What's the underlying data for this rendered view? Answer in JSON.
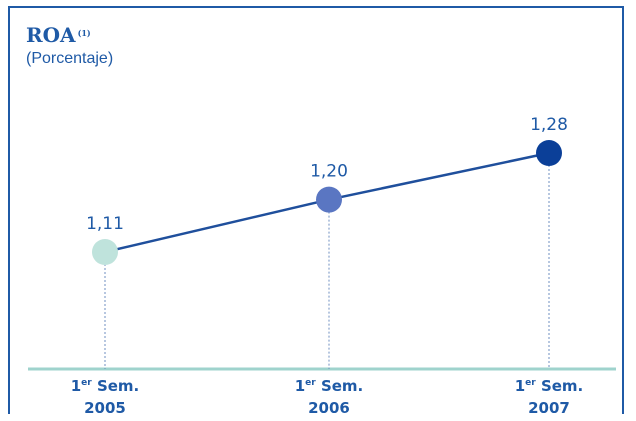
{
  "chart_data": {
    "type": "line",
    "title": "ROA",
    "title_superscript": "(1)",
    "subtitle": "(Porcentaje)",
    "categories": [
      {
        "prefix": "1",
        "superscript": "er",
        "suffix": " Sem.",
        "year": "2005"
      },
      {
        "prefix": "1",
        "superscript": "er",
        "suffix": " Sem.",
        "year": "2006"
      },
      {
        "prefix": "1",
        "superscript": "er",
        "suffix": " Sem.",
        "year": "2007"
      }
    ],
    "series": [
      {
        "values": [
          1.11,
          1.2,
          1.28
        ],
        "labels": [
          "1,11",
          "1,20",
          "1,28"
        ],
        "point_colors": [
          "#bfe3dc",
          "#5a76c2",
          "#0b3f98"
        ],
        "line_color": "#1f4f9c"
      }
    ],
    "baseline_color": "#9fd3cd",
    "guide_color": "#6f8fc0",
    "grid": false,
    "legend": "none"
  }
}
